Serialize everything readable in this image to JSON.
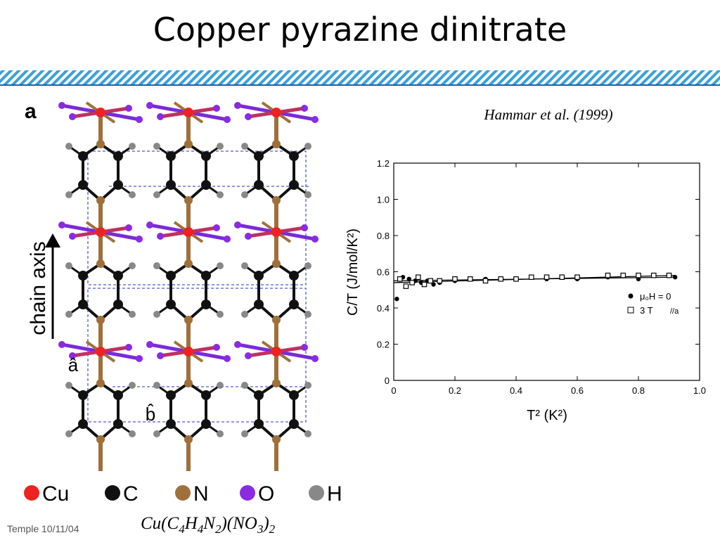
{
  "slide": {
    "title": "Copper pyrazine dinitrate",
    "citation": "Hammar et al. (1999)",
    "footer": "Temple 10/11/04"
  },
  "formula": [
    {
      "text": "Cu(C",
      "sub": "4"
    },
    {
      "text": "H",
      "sub": "4"
    },
    {
      "text": "N",
      "sub": "2"
    },
    {
      "text": ")(NO",
      "sub": "3"
    },
    {
      "text": ")",
      "sub": "2"
    }
  ],
  "structure": {
    "panel_label": "a",
    "axis_label": "chain axis",
    "vectors": [
      "â",
      "b̂"
    ],
    "legend": [
      {
        "symbol": "Cu",
        "color": "#ee2222"
      },
      {
        "symbol": "C",
        "color": "#111111"
      },
      {
        "symbol": "N",
        "color": "#a0703a"
      },
      {
        "symbol": "O",
        "color": "#8a2be2"
      },
      {
        "symbol": "H",
        "color": "#888888"
      }
    ]
  },
  "chart_data": {
    "type": "scatter",
    "xlabel": "T² (K²)",
    "ylabel": "C/T (J/mol/K²)",
    "annotation": "//a",
    "xlim": [
      0,
      1
    ],
    "xticks": [
      0,
      0.2,
      0.4,
      0.6,
      0.8,
      {
        "value": 1,
        "label": "1.0"
      }
    ],
    "ylim": [
      0,
      1.2
    ],
    "yticks": [
      0,
      0.2,
      0.4,
      0.6,
      0.8,
      {
        "value": 1,
        "label": "1.0"
      },
      1.2
    ],
    "series": [
      {
        "name": "μ₀H = 0",
        "color": "#000000",
        "marker": "filled-circle",
        "x": [
          0.01,
          0.03,
          0.05,
          0.07,
          0.09,
          0.11,
          0.13,
          0.15,
          0.2,
          0.3,
          0.4,
          0.5,
          0.6,
          0.7,
          0.8,
          0.92
        ],
        "values": [
          0.45,
          0.57,
          0.56,
          0.55,
          0.54,
          0.55,
          0.53,
          0.54,
          0.55,
          0.56,
          0.56,
          0.56,
          0.56,
          0.57,
          0.56,
          0.57
        ]
      },
      {
        "name": "3 T",
        "color": "#000000",
        "marker": "open-square",
        "x": [
          0.02,
          0.04,
          0.06,
          0.08,
          0.1,
          0.12,
          0.15,
          0.2,
          0.25,
          0.3,
          0.35,
          0.4,
          0.45,
          0.5,
          0.55,
          0.6,
          0.7,
          0.75,
          0.8,
          0.85,
          0.9
        ],
        "values": [
          0.56,
          0.52,
          0.54,
          0.57,
          0.53,
          0.55,
          0.55,
          0.56,
          0.56,
          0.55,
          0.56,
          0.56,
          0.57,
          0.57,
          0.57,
          0.57,
          0.58,
          0.58,
          0.58,
          0.58,
          0.58
        ]
      }
    ],
    "fits": [
      {
        "x": [
          0,
          0.92
        ],
        "values": [
          0.55,
          0.57
        ]
      },
      {
        "x": [
          0,
          0.92
        ],
        "values": [
          0.54,
          0.58
        ]
      }
    ]
  }
}
